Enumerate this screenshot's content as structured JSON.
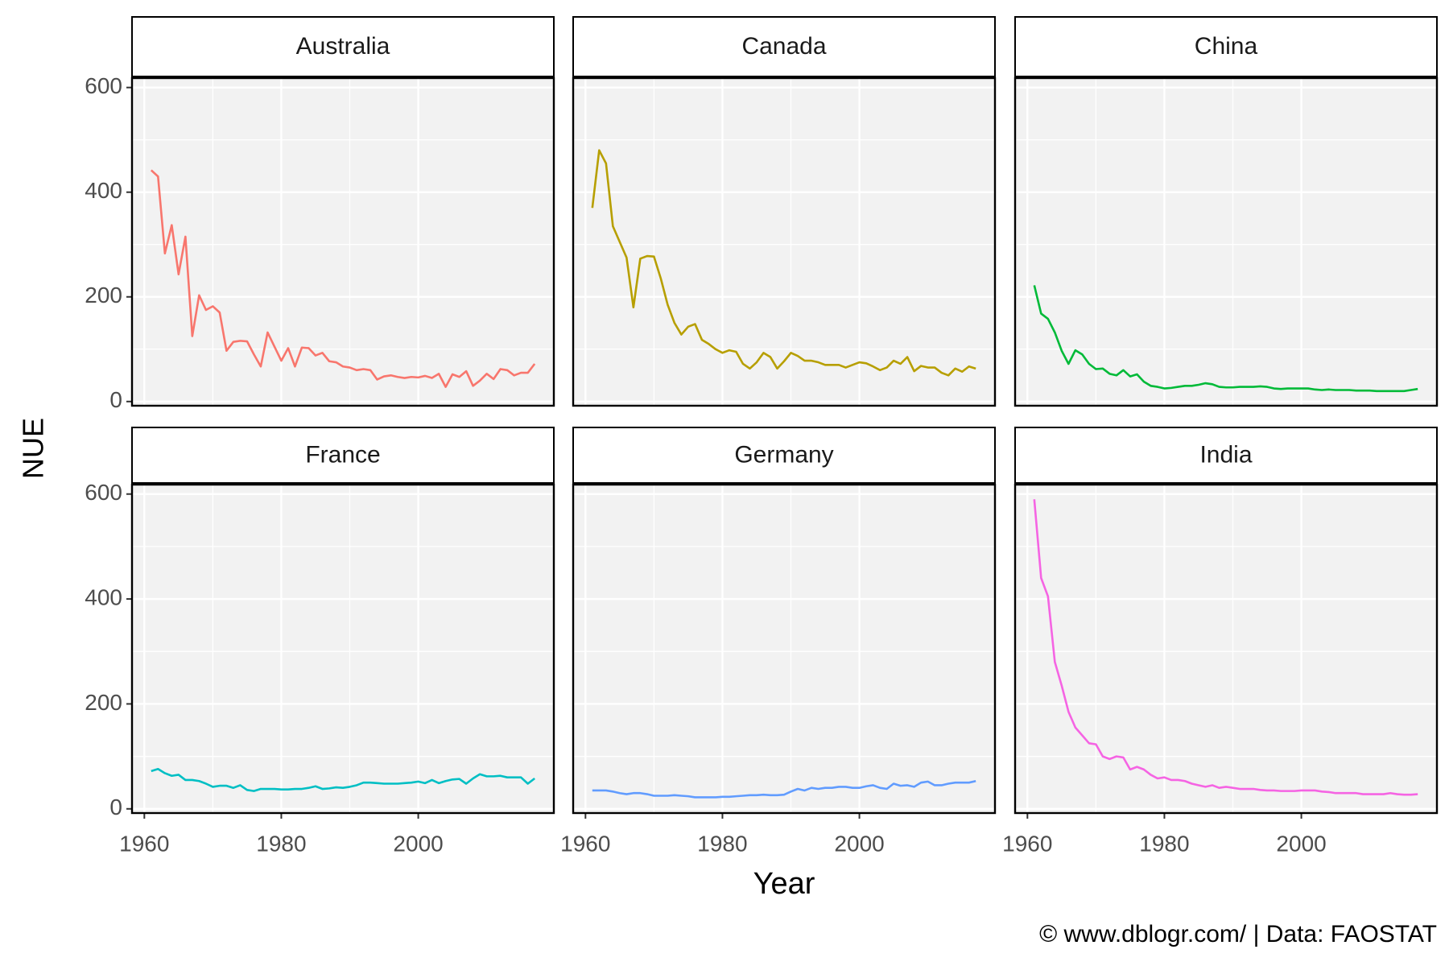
{
  "ylabel": "NUE",
  "xlabel": "Year",
  "caption": "© www.dblogr.com/  |  Data: FAOSTAT",
  "chart_data": [
    {
      "type": "line",
      "title": "Australia",
      "color": "#F8766D",
      "x": [
        1961,
        1962,
        1963,
        1964,
        1965,
        1966,
        1967,
        1968,
        1969,
        1970,
        1971,
        1972,
        1973,
        1974,
        1975,
        1976,
        1977,
        1978,
        1979,
        1980,
        1981,
        1982,
        1983,
        1984,
        1985,
        1986,
        1987,
        1988,
        1989,
        1990,
        1991,
        1992,
        1993,
        1994,
        1995,
        1996,
        1997,
        1998,
        1999,
        2000,
        2001,
        2002,
        2003,
        2004,
        2005,
        2006,
        2007,
        2008,
        2009,
        2010,
        2011,
        2012,
        2013,
        2014,
        2015,
        2016,
        2017
      ],
      "values": [
        442,
        430,
        283,
        337,
        243,
        315,
        125,
        203,
        175,
        182,
        170,
        97,
        114,
        116,
        115,
        90,
        67,
        132,
        105,
        78,
        102,
        67,
        103,
        102,
        88,
        93,
        77,
        75,
        67,
        65,
        60,
        62,
        60,
        42,
        48,
        50,
        47,
        45,
        47,
        46,
        49,
        45,
        53,
        28,
        52,
        47,
        58,
        30,
        40,
        53,
        43,
        62,
        60,
        50,
        55,
        55,
        72
      ],
      "xlim": [
        1958.2,
        2019.8
      ],
      "ylim": [
        -8,
        618
      ],
      "xticks": [
        1960,
        1980,
        2000
      ],
      "yticks": [
        0,
        200,
        400,
        600
      ]
    },
    {
      "type": "line",
      "title": "Canada",
      "color": "#B79F00",
      "x": [
        1961,
        1962,
        1963,
        1964,
        1965,
        1966,
        1967,
        1968,
        1969,
        1970,
        1971,
        1972,
        1973,
        1974,
        1975,
        1976,
        1977,
        1978,
        1979,
        1980,
        1981,
        1982,
        1983,
        1984,
        1985,
        1986,
        1987,
        1988,
        1989,
        1990,
        1991,
        1992,
        1993,
        1994,
        1995,
        1996,
        1997,
        1998,
        1999,
        2000,
        2001,
        2002,
        2003,
        2004,
        2005,
        2006,
        2007,
        2008,
        2009,
        2010,
        2011,
        2012,
        2013,
        2014,
        2015,
        2016,
        2017
      ],
      "values": [
        370,
        480,
        455,
        335,
        305,
        275,
        180,
        273,
        278,
        277,
        235,
        185,
        150,
        128,
        143,
        148,
        118,
        110,
        100,
        93,
        98,
        95,
        72,
        63,
        75,
        93,
        85,
        63,
        77,
        93,
        87,
        78,
        78,
        75,
        70,
        70,
        70,
        65,
        70,
        75,
        73,
        67,
        60,
        65,
        78,
        72,
        85,
        58,
        68,
        65,
        65,
        55,
        50,
        63,
        57,
        67,
        63
      ],
      "xlim": [
        1958.2,
        2019.8
      ],
      "ylim": [
        -8,
        618
      ],
      "xticks": [
        1960,
        1980,
        2000
      ],
      "yticks": [
        0,
        200,
        400,
        600
      ]
    },
    {
      "type": "line",
      "title": "China",
      "color": "#00BA38",
      "x": [
        1961,
        1962,
        1963,
        1964,
        1965,
        1966,
        1967,
        1968,
        1969,
        1970,
        1971,
        1972,
        1973,
        1974,
        1975,
        1976,
        1977,
        1978,
        1979,
        1980,
        1981,
        1982,
        1983,
        1984,
        1985,
        1986,
        1987,
        1988,
        1989,
        1990,
        1991,
        1992,
        1993,
        1994,
        1995,
        1996,
        1997,
        1998,
        1999,
        2000,
        2001,
        2002,
        2003,
        2004,
        2005,
        2006,
        2007,
        2008,
        2009,
        2010,
        2011,
        2012,
        2013,
        2014,
        2015,
        2016,
        2017
      ],
      "values": [
        222,
        168,
        158,
        132,
        97,
        72,
        98,
        90,
        72,
        62,
        63,
        53,
        50,
        60,
        48,
        52,
        38,
        30,
        28,
        25,
        26,
        28,
        30,
        30,
        32,
        35,
        33,
        28,
        27,
        27,
        28,
        28,
        28,
        29,
        28,
        25,
        24,
        25,
        25,
        25,
        25,
        23,
        22,
        23,
        22,
        22,
        22,
        21,
        21,
        21,
        20,
        20,
        20,
        20,
        20,
        22,
        24
      ],
      "xlim": [
        1958.2,
        2019.8
      ],
      "ylim": [
        -8,
        618
      ],
      "xticks": [
        1960,
        1980,
        2000
      ],
      "yticks": [
        0,
        200,
        400,
        600
      ]
    },
    {
      "type": "line",
      "title": "France",
      "color": "#00BFC4",
      "x": [
        1961,
        1962,
        1963,
        1964,
        1965,
        1966,
        1967,
        1968,
        1969,
        1970,
        1971,
        1972,
        1973,
        1974,
        1975,
        1976,
        1977,
        1978,
        1979,
        1980,
        1981,
        1982,
        1983,
        1984,
        1985,
        1986,
        1987,
        1988,
        1989,
        1990,
        1991,
        1992,
        1993,
        1994,
        1995,
        1996,
        1997,
        1998,
        1999,
        2000,
        2001,
        2002,
        2003,
        2004,
        2005,
        2006,
        2007,
        2008,
        2009,
        2010,
        2011,
        2012,
        2013,
        2014,
        2015,
        2016,
        2017
      ],
      "values": [
        72,
        76,
        68,
        63,
        65,
        55,
        55,
        53,
        48,
        42,
        44,
        44,
        40,
        45,
        36,
        34,
        38,
        38,
        38,
        37,
        37,
        38,
        38,
        40,
        43,
        38,
        39,
        41,
        40,
        42,
        45,
        50,
        50,
        49,
        48,
        48,
        48,
        49,
        50,
        52,
        49,
        55,
        49,
        53,
        56,
        57,
        48,
        58,
        66,
        62,
        62,
        63,
        60,
        60,
        60,
        48,
        58
      ],
      "xlim": [
        1958.2,
        2019.8
      ],
      "ylim": [
        -8,
        618
      ],
      "xticks": [
        1960,
        1980,
        2000
      ],
      "yticks": [
        0,
        200,
        400,
        600
      ]
    },
    {
      "type": "line",
      "title": "Germany",
      "color": "#619CFF",
      "x": [
        1961,
        1962,
        1963,
        1964,
        1965,
        1966,
        1967,
        1968,
        1969,
        1970,
        1971,
        1972,
        1973,
        1974,
        1975,
        1976,
        1977,
        1978,
        1979,
        1980,
        1981,
        1982,
        1983,
        1984,
        1985,
        1986,
        1987,
        1988,
        1989,
        1990,
        1991,
        1992,
        1993,
        1994,
        1995,
        1996,
        1997,
        1998,
        1999,
        2000,
        2001,
        2002,
        2003,
        2004,
        2005,
        2006,
        2007,
        2008,
        2009,
        2010,
        2011,
        2012,
        2013,
        2014,
        2015,
        2016,
        2017
      ],
      "values": [
        35,
        35,
        35,
        33,
        30,
        28,
        30,
        30,
        28,
        25,
        25,
        25,
        26,
        25,
        24,
        22,
        22,
        22,
        22,
        23,
        23,
        24,
        25,
        26,
        26,
        27,
        26,
        26,
        27,
        33,
        38,
        35,
        40,
        38,
        40,
        40,
        42,
        42,
        40,
        40,
        43,
        45,
        40,
        38,
        48,
        44,
        45,
        42,
        50,
        52,
        45,
        45,
        48,
        50,
        50,
        50,
        53
      ],
      "xlim": [
        1958.2,
        2019.8
      ],
      "ylim": [
        -8,
        618
      ],
      "xticks": [
        1960,
        1980,
        2000
      ],
      "yticks": [
        0,
        200,
        400,
        600
      ]
    },
    {
      "type": "line",
      "title": "India",
      "color": "#F564E3",
      "x": [
        1961,
        1962,
        1963,
        1964,
        1965,
        1966,
        1967,
        1968,
        1969,
        1970,
        1971,
        1972,
        1973,
        1974,
        1975,
        1976,
        1977,
        1978,
        1979,
        1980,
        1981,
        1982,
        1983,
        1984,
        1985,
        1986,
        1987,
        1988,
        1989,
        1990,
        1991,
        1992,
        1993,
        1994,
        1995,
        1996,
        1997,
        1998,
        1999,
        2000,
        2001,
        2002,
        2003,
        2004,
        2005,
        2006,
        2007,
        2008,
        2009,
        2010,
        2011,
        2012,
        2013,
        2014,
        2015,
        2016,
        2017
      ],
      "values": [
        590,
        440,
        405,
        280,
        235,
        185,
        155,
        140,
        125,
        123,
        100,
        95,
        100,
        98,
        75,
        80,
        75,
        65,
        58,
        60,
        55,
        55,
        53,
        48,
        45,
        42,
        45,
        40,
        42,
        40,
        38,
        38,
        38,
        36,
        35,
        35,
        34,
        34,
        34,
        35,
        35,
        35,
        33,
        32,
        30,
        30,
        30,
        30,
        28,
        28,
        28,
        28,
        30,
        28,
        27,
        27,
        28
      ],
      "xlim": [
        1958.2,
        2019.8
      ],
      "ylim": [
        -8,
        618
      ],
      "xticks": [
        1960,
        1980,
        2000
      ],
      "yticks": [
        0,
        200,
        400,
        600
      ]
    }
  ]
}
